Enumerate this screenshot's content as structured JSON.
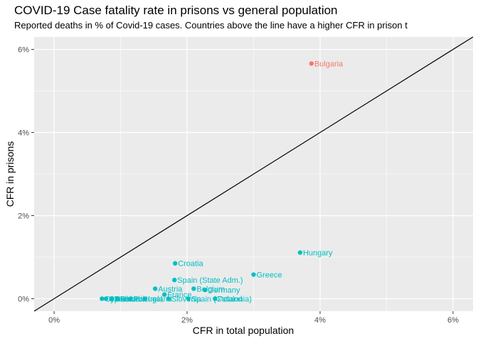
{
  "chart_data": {
    "type": "scatter",
    "title": "COVID-19 Case fatality rate in prisons vs general population",
    "subtitle": "Reported deaths in % of Covid-19 cases. Countries above the line have a higher CFR in prison t",
    "xlabel": "CFR in total population",
    "ylabel": "CFR in prisons",
    "xlim": [
      -0.3,
      6.3
    ],
    "ylim": [
      -0.3,
      6.3
    ],
    "x_ticks": [
      "0%",
      "2%",
      "4%",
      "6%"
    ],
    "y_ticks": [
      "0%",
      "2%",
      "4%",
      "6%"
    ],
    "reference_line": "y = x",
    "colors": {
      "above": "#F8766D",
      "below": "#00BFC4",
      "panel": "#EBEBEB",
      "grid": "#FFFFFF"
    },
    "points": [
      {
        "label": "Bulgaria",
        "x": 3.87,
        "y": 5.66,
        "group": "above"
      },
      {
        "label": "Hungary",
        "x": 3.7,
        "y": 1.11,
        "group": "below"
      },
      {
        "label": "Greece",
        "x": 3.0,
        "y": 0.58,
        "group": "below"
      },
      {
        "label": "Croatia",
        "x": 1.82,
        "y": 0.85,
        "group": "below"
      },
      {
        "label": "Spain (State Adm.)",
        "x": 1.81,
        "y": 0.45,
        "group": "below"
      },
      {
        "label": "Austria",
        "x": 1.52,
        "y": 0.24,
        "group": "below"
      },
      {
        "label": "France",
        "x": 1.66,
        "y": 0.1,
        "group": "below"
      },
      {
        "label": "Belgium",
        "x": 2.1,
        "y": 0.24,
        "group": "below"
      },
      {
        "label": "Germany",
        "x": 2.27,
        "y": 0.21,
        "group": "below"
      },
      {
        "label": "Spain (Catalonia)",
        "x": 2.02,
        "y": 0.0,
        "group": "below"
      },
      {
        "label": "Poland",
        "x": 2.42,
        "y": 0.0,
        "group": "below"
      },
      {
        "label": "Ireland",
        "x": 1.37,
        "y": 0.0,
        "group": "below"
      },
      {
        "label": "Slovenia",
        "x": 1.72,
        "y": 0.0,
        "group": "below"
      },
      {
        "label": "Portugal",
        "x": 1.15,
        "y": 0.0,
        "group": "below"
      },
      {
        "label": "Denmark",
        "x": 0.87,
        "y": 0.0,
        "group": "below"
      },
      {
        "label": "Czechia",
        "x": 0.78,
        "y": 0.0,
        "group": "below"
      },
      {
        "label": "Finland",
        "x": 0.86,
        "y": 0.0,
        "group": "below"
      },
      {
        "label": "Cyprus",
        "x": 0.72,
        "y": 0.0,
        "group": "below"
      },
      {
        "label": "Estonia",
        "x": 0.95,
        "y": 0.0,
        "group": "below"
      }
    ]
  }
}
